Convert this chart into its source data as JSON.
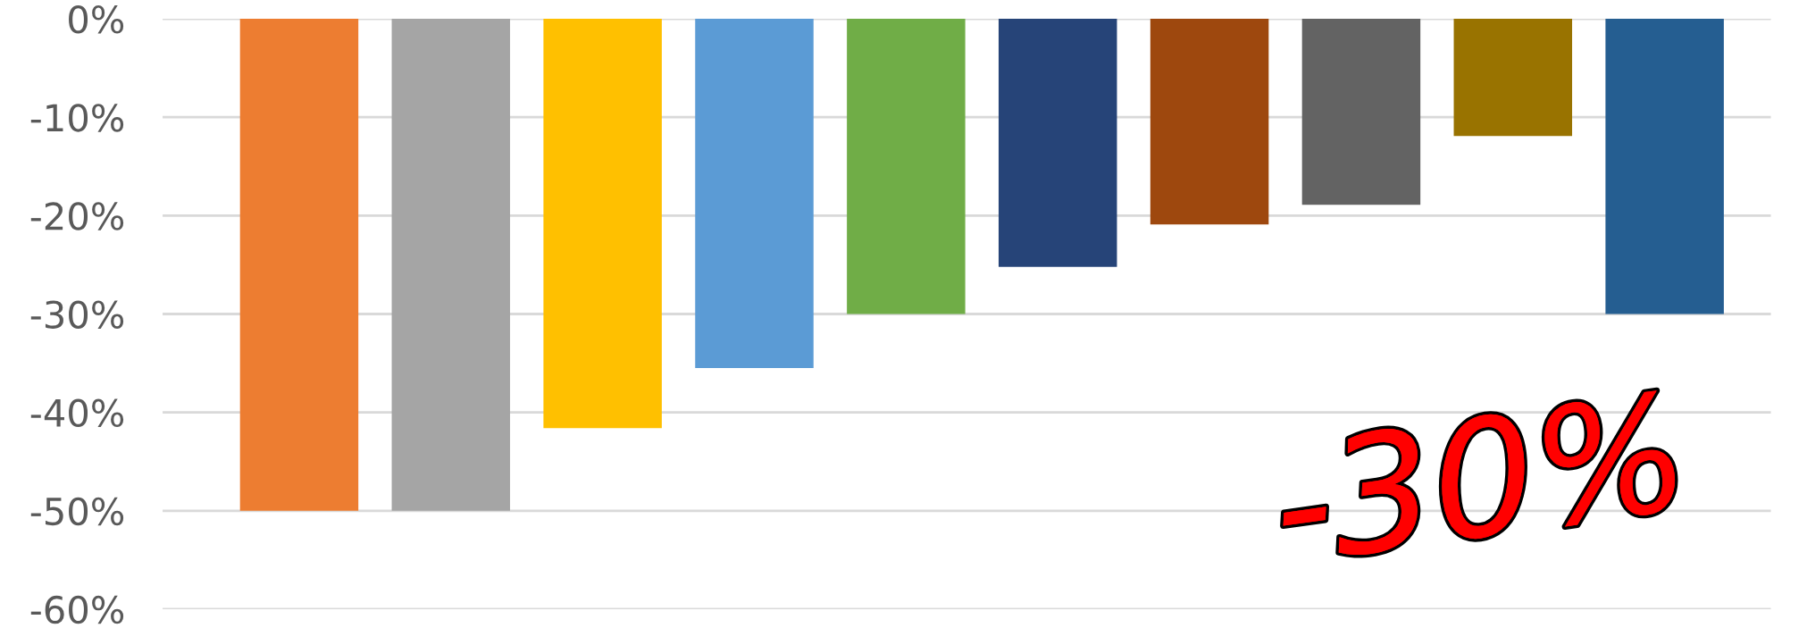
{
  "chart_data": {
    "type": "bar",
    "categories": [
      null,
      null,
      null,
      null,
      null,
      null,
      null,
      null,
      null,
      null
    ],
    "values": [
      -50,
      -50,
      -41.6,
      -35.5,
      -30,
      -25.2,
      -20.9,
      -18.9,
      -11.9,
      -30
    ],
    "colors": [
      "#ed7d31",
      "#a5a5a5",
      "#ffc000",
      "#5b9bd5",
      "#70ad47",
      "#264478",
      "#9e480e",
      "#636363",
      "#997300",
      "#255e91"
    ],
    "ylim": [
      -60,
      0
    ],
    "yticks": [
      {
        "value": 0,
        "label": "0%"
      },
      {
        "value": -10,
        "label": "-10%"
      },
      {
        "value": -20,
        "label": "-20%"
      },
      {
        "value": -30,
        "label": "-30%"
      },
      {
        "value": -40,
        "label": "-40%"
      },
      {
        "value": -50,
        "label": "-50%"
      },
      {
        "value": -60,
        "label": "-60%"
      }
    ],
    "grid": "y",
    "annotations": [
      "-30%"
    ]
  }
}
